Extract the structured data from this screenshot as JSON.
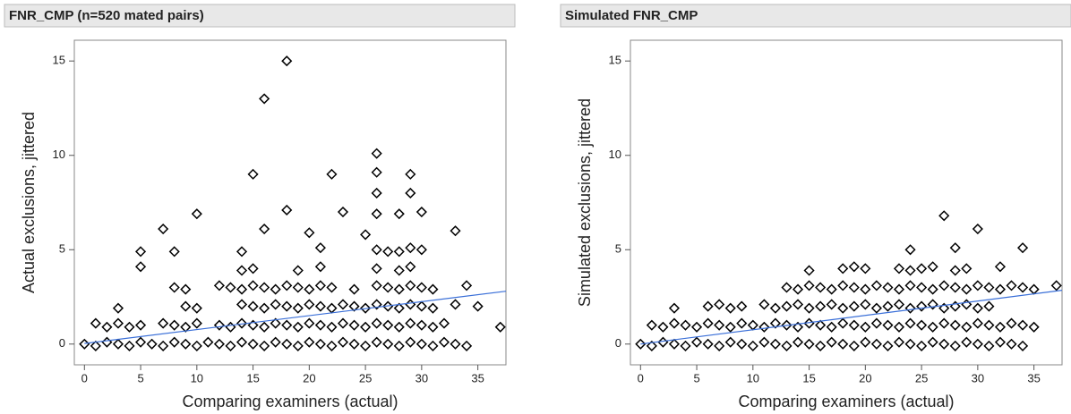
{
  "chart_data": [
    {
      "type": "scatter",
      "title": "FNR_CMP (n=520 mated pairs)",
      "xlabel": "Comparing examiners (actual)",
      "ylabel": "Actual exclusions, jittered",
      "xlim": [
        -0.9,
        37.5
      ],
      "ylim": [
        -1.1,
        16.1
      ],
      "xticks": [
        0,
        5,
        10,
        15,
        20,
        25,
        30,
        35
      ],
      "yticks": [
        0,
        5,
        10,
        15
      ],
      "color": "#000000",
      "x": [
        0,
        1,
        2,
        3,
        4,
        5,
        6,
        7,
        8,
        9,
        10,
        11,
        12,
        13,
        14,
        15,
        16,
        17,
        18,
        19,
        20,
        21,
        22,
        23,
        24,
        25,
        26,
        27,
        28,
        29,
        30,
        31,
        32,
        33,
        34,
        1,
        2,
        3,
        4,
        5,
        7,
        8,
        9,
        10,
        12,
        13,
        14,
        15,
        16,
        17,
        18,
        19,
        20,
        21,
        22,
        23,
        24,
        25,
        26,
        27,
        28,
        29,
        30,
        31,
        32,
        37,
        9,
        10,
        14,
        15,
        16,
        17,
        18,
        19,
        20,
        21,
        22,
        23,
        24,
        25,
        26,
        27,
        28,
        29,
        30,
        31,
        33,
        35,
        3,
        8,
        9,
        12,
        13,
        14,
        15,
        16,
        17,
        18,
        19,
        20,
        21,
        22,
        24,
        26,
        27,
        28,
        29,
        30,
        31,
        34,
        5,
        14,
        15,
        19,
        21,
        26,
        28,
        29,
        5,
        8,
        14,
        21,
        26,
        27,
        28,
        29,
        30,
        7,
        16,
        20,
        25,
        33,
        10,
        18,
        23,
        26,
        28,
        30,
        26,
        29,
        15,
        22,
        26,
        29,
        26,
        16,
        18
      ],
      "values": [
        0,
        -0.1,
        0.1,
        0,
        -0.1,
        0.1,
        0,
        -0.1,
        0.1,
        0,
        -0.1,
        0.1,
        0,
        -0.1,
        0.1,
        0,
        -0.1,
        0.1,
        0,
        -0.1,
        0.1,
        0,
        -0.1,
        0.1,
        0,
        -0.1,
        0.1,
        0,
        -0.1,
        0.1,
        0,
        -0.1,
        0.1,
        0,
        -0.1,
        1.1,
        0.9,
        1.1,
        0.9,
        1.0,
        1.1,
        1.0,
        0.9,
        1.1,
        1.0,
        0.9,
        1.1,
        1.0,
        0.9,
        1.1,
        1.0,
        0.9,
        1.1,
        1.0,
        0.9,
        1.1,
        1.0,
        0.9,
        1.1,
        1.0,
        0.9,
        1.1,
        1.0,
        0.9,
        1.1,
        0.9,
        2.0,
        1.9,
        2.1,
        2.0,
        1.9,
        2.1,
        2.0,
        1.9,
        2.1,
        2.0,
        1.9,
        2.1,
        2.0,
        1.9,
        2.1,
        2.0,
        1.9,
        2.1,
        2.0,
        1.9,
        2.1,
        2.0,
        1.9,
        3.0,
        2.9,
        3.1,
        3.0,
        2.9,
        3.1,
        3.0,
        2.9,
        3.1,
        3.0,
        2.9,
        3.1,
        3.0,
        2.9,
        3.1,
        3.0,
        2.9,
        3.1,
        3.0,
        2.9,
        3.1,
        4.1,
        3.9,
        4.0,
        3.9,
        4.1,
        4.0,
        3.9,
        4.1,
        4.9,
        4.9,
        4.9,
        5.1,
        5.0,
        4.9,
        4.9,
        5.1,
        5.0,
        6.1,
        6.1,
        5.9,
        5.8,
        6.0,
        6.9,
        7.1,
        7.0,
        6.9,
        6.9,
        7.0,
        8.0,
        8.0,
        9.0,
        9.0,
        9.1,
        9.0,
        10.1,
        13.0,
        15.0
      ],
      "trend": {
        "x": [
          0,
          37.5
        ],
        "values": [
          0.03,
          2.8
        ],
        "color": "#3a6fd8"
      }
    },
    {
      "type": "scatter",
      "title": "Simulated FNR_CMP",
      "xlabel": "Comparing examiners (actual)",
      "ylabel": "Simulated exclusions, jittered",
      "xlim": [
        -0.9,
        37.5
      ],
      "ylim": [
        -1.1,
        16.1
      ],
      "xticks": [
        0,
        5,
        10,
        15,
        20,
        25,
        30,
        35
      ],
      "yticks": [
        0,
        5,
        10,
        15
      ],
      "color": "#000000",
      "x": [
        0,
        1,
        2,
        3,
        4,
        5,
        6,
        7,
        8,
        9,
        10,
        11,
        12,
        13,
        14,
        15,
        16,
        17,
        18,
        19,
        20,
        21,
        22,
        23,
        24,
        25,
        26,
        27,
        28,
        29,
        30,
        31,
        32,
        33,
        34,
        1,
        2,
        3,
        4,
        5,
        6,
        7,
        8,
        9,
        10,
        11,
        12,
        13,
        14,
        15,
        16,
        17,
        18,
        19,
        20,
        21,
        22,
        23,
        24,
        25,
        26,
        27,
        28,
        29,
        30,
        31,
        32,
        33,
        34,
        35,
        3,
        6,
        7,
        8,
        9,
        11,
        12,
        13,
        14,
        15,
        16,
        17,
        18,
        19,
        20,
        21,
        22,
        23,
        24,
        25,
        26,
        27,
        28,
        29,
        30,
        31,
        13,
        14,
        15,
        16,
        17,
        18,
        19,
        20,
        21,
        22,
        23,
        24,
        25,
        26,
        27,
        28,
        29,
        30,
        31,
        32,
        33,
        34,
        35,
        37,
        15,
        18,
        19,
        20,
        23,
        24,
        25,
        26,
        28,
        29,
        32,
        24,
        28,
        34,
        30,
        27
      ],
      "values": [
        0,
        -0.1,
        0.1,
        0,
        -0.1,
        0.1,
        0,
        -0.1,
        0.1,
        0,
        -0.1,
        0.1,
        0,
        -0.1,
        0.1,
        0,
        -0.1,
        0.1,
        0,
        -0.1,
        0.1,
        0,
        -0.1,
        0.1,
        0,
        -0.1,
        0.1,
        0,
        -0.1,
        0.1,
        0,
        -0.1,
        0.1,
        0,
        -0.1,
        1.0,
        0.9,
        1.1,
        1.0,
        0.9,
        1.1,
        1.0,
        0.9,
        1.1,
        1.0,
        0.9,
        1.1,
        1.0,
        0.9,
        1.1,
        1.0,
        0.9,
        1.1,
        1.0,
        0.9,
        1.1,
        1.0,
        0.9,
        1.1,
        1.0,
        0.9,
        1.1,
        1.0,
        0.9,
        1.1,
        1.0,
        0.9,
        1.1,
        1.0,
        0.9,
        1.9,
        2.0,
        2.1,
        1.9,
        2.0,
        2.1,
        1.9,
        2.0,
        2.1,
        1.9,
        2.0,
        2.1,
        1.9,
        2.0,
        2.1,
        1.9,
        2.0,
        2.1,
        1.9,
        2.0,
        2.1,
        1.9,
        2.0,
        2.1,
        1.9,
        2.0,
        3.0,
        2.9,
        3.1,
        3.0,
        2.9,
        3.1,
        3.0,
        2.9,
        3.1,
        3.0,
        2.9,
        3.1,
        3.0,
        2.9,
        3.1,
        3.0,
        2.9,
        3.1,
        3.0,
        2.9,
        3.1,
        3.0,
        2.9,
        3.1,
        3.9,
        4.0,
        4.1,
        4.0,
        4.0,
        3.9,
        4.0,
        4.1,
        3.9,
        4.0,
        4.1,
        5.0,
        5.1,
        5.1,
        6.1,
        6.8
      ],
      "trend": {
        "x": [
          0,
          37.5
        ],
        "values": [
          0.0,
          2.85
        ],
        "color": "#3a6fd8"
      }
    }
  ]
}
